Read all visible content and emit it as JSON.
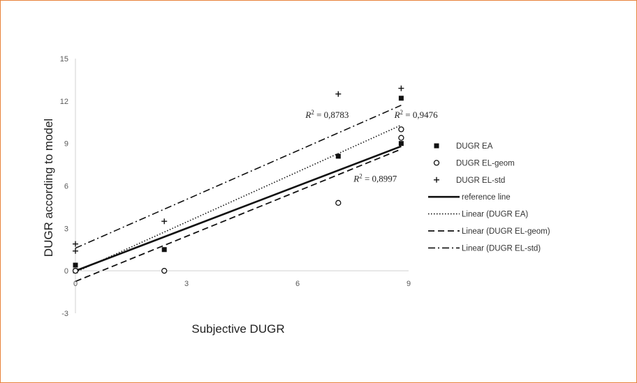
{
  "chart_data": {
    "type": "scatter",
    "title": "",
    "xlabel": "Subjective DUGR",
    "ylabel": "DUGR according to model",
    "xlim": [
      0,
      9
    ],
    "ylim": [
      -3,
      15
    ],
    "xticks": [
      "0",
      "3",
      "6",
      "9"
    ],
    "yticks": [
      "-3",
      "0",
      "3",
      "6",
      "9",
      "12",
      "15"
    ],
    "grid": false,
    "legend_position": "right",
    "series": [
      {
        "name": "DUGR EA",
        "kind": "points",
        "marker": "square",
        "points": [
          [
            0,
            0.4
          ],
          [
            0,
            0
          ],
          [
            2.4,
            1.5
          ],
          [
            7.1,
            8.1
          ],
          [
            8.8,
            12.2
          ],
          [
            8.8,
            9.0
          ]
        ]
      },
      {
        "name": "DUGR EL-geom",
        "kind": "points",
        "marker": "circle",
        "points": [
          [
            0,
            0
          ],
          [
            2.4,
            0
          ],
          [
            7.1,
            4.8
          ],
          [
            8.8,
            10.0
          ],
          [
            8.8,
            9.4
          ]
        ]
      },
      {
        "name": "DUGR EL-std",
        "kind": "points",
        "marker": "plus",
        "points": [
          [
            0,
            1.9
          ],
          [
            0,
            1.4
          ],
          [
            2.4,
            3.5
          ],
          [
            7.1,
            12.5
          ],
          [
            8.8,
            12.9
          ]
        ]
      },
      {
        "name": "reference line",
        "kind": "line",
        "dash": "solid",
        "points": [
          [
            0,
            0
          ],
          [
            8.8,
            8.8
          ]
        ]
      },
      {
        "name": "Linear (DUGR EA)",
        "kind": "line",
        "dash": "dotted",
        "points": [
          [
            0,
            -0.1
          ],
          [
            8.8,
            10.3
          ]
        ]
      },
      {
        "name": "Linear (DUGR EL-geom)",
        "kind": "line",
        "dash": "dashed",
        "points": [
          [
            0,
            -0.75
          ],
          [
            8.8,
            8.6
          ]
        ]
      },
      {
        "name": "Linear (DUGR EL-std)",
        "kind": "line",
        "dash": "dashdot",
        "points": [
          [
            0,
            1.6
          ],
          [
            8.8,
            11.7
          ]
        ]
      }
    ],
    "annotations": [
      {
        "r2_value": " = 0,8783",
        "x": 6.8,
        "y": 10.8
      },
      {
        "r2_value": " = 0,9476",
        "x": 9.2,
        "y": 10.8
      },
      {
        "r2_value": " = 0,8997",
        "x": 8.1,
        "y": 6.3
      }
    ]
  }
}
